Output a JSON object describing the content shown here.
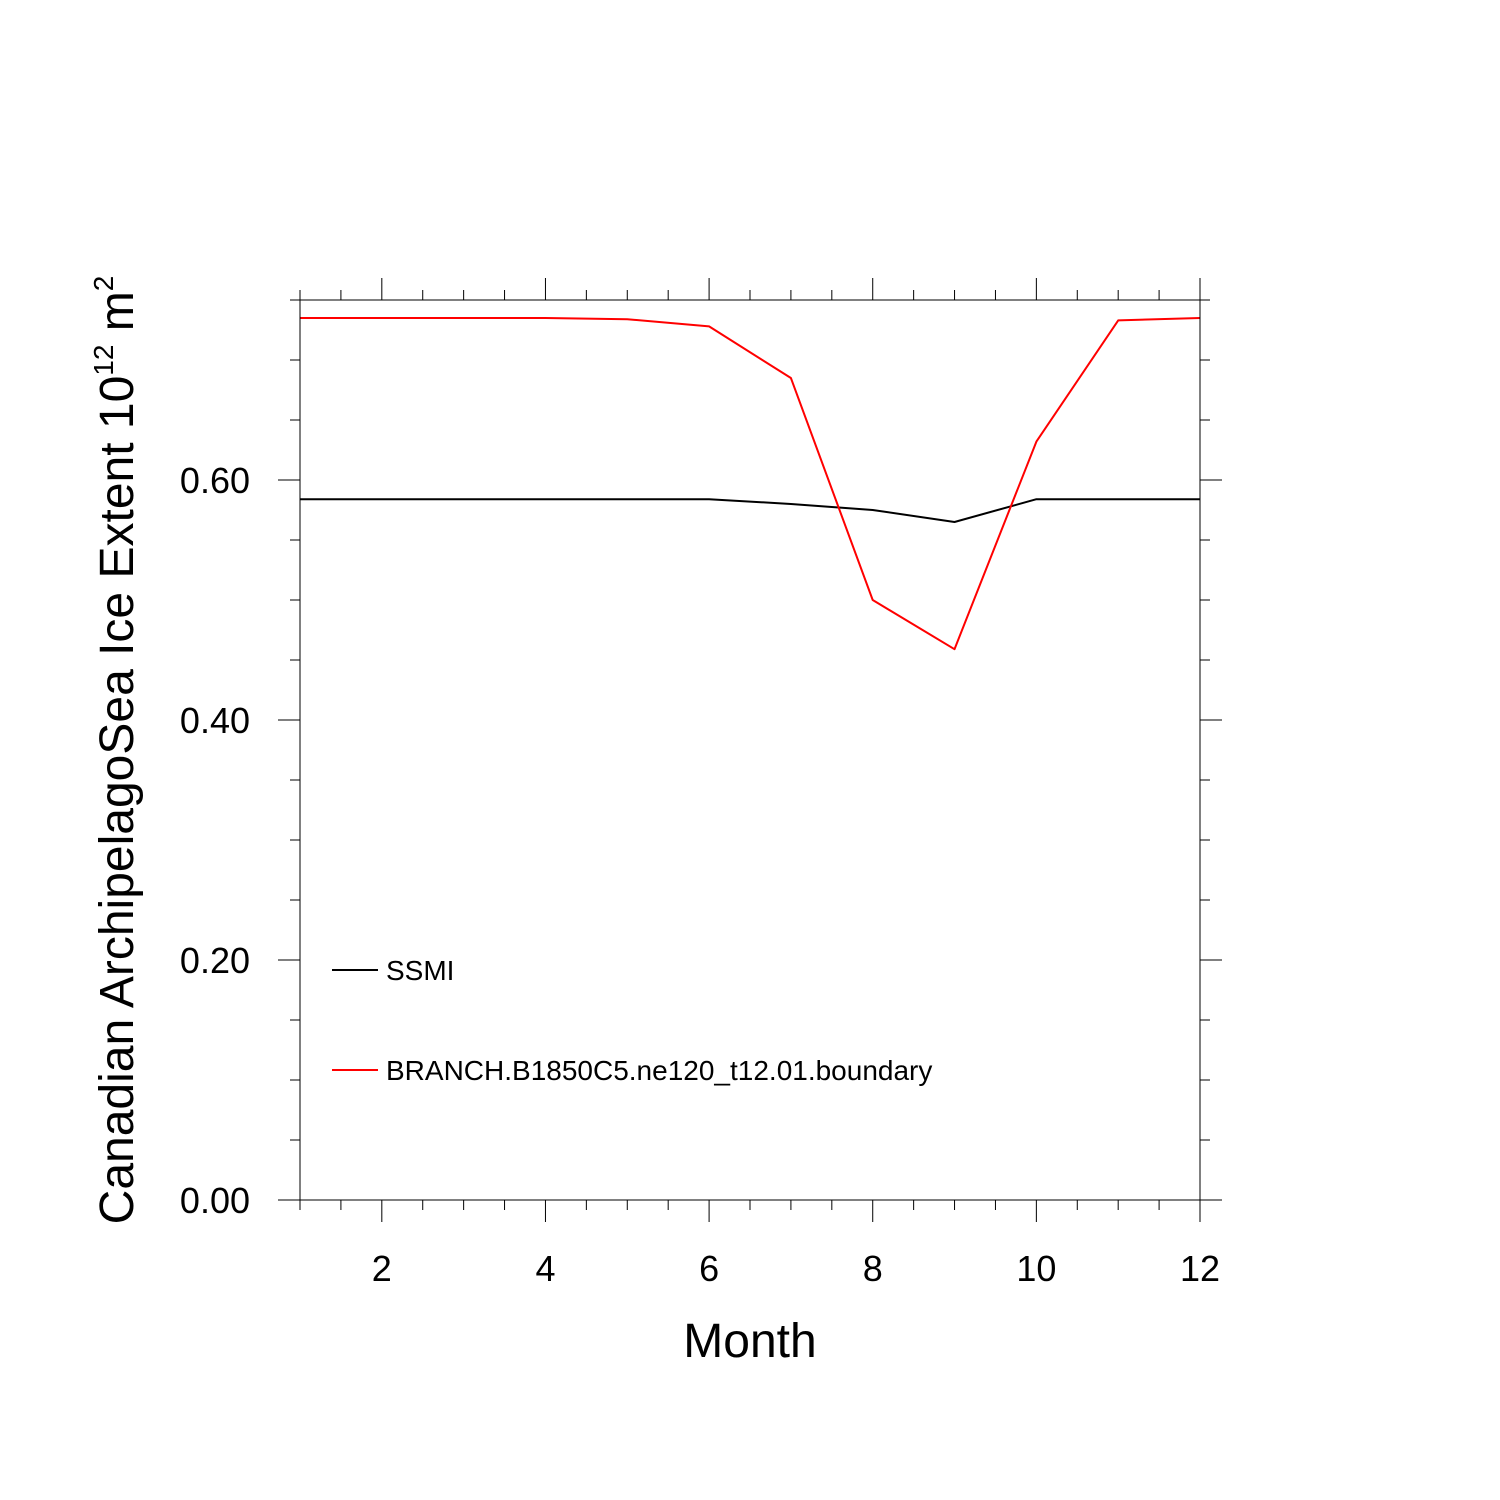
{
  "chart_data": {
    "type": "line",
    "title": "",
    "xlabel": "Month",
    "ylabel": {
      "prefix": "Canadian ArchipelagoSea Ice Extent 10",
      "sup1": "12",
      "mid": " m",
      "sup2": "2"
    },
    "xlim": [
      1,
      12
    ],
    "ylim": [
      0,
      0.75
    ],
    "x_ticks": [
      2,
      4,
      6,
      8,
      10,
      12
    ],
    "x_tick_labels": [
      "2",
      "4",
      "6",
      "8",
      "10",
      "12"
    ],
    "y_ticks": [
      0.0,
      0.2,
      0.4,
      0.6
    ],
    "y_tick_labels": [
      "0.00",
      "0.20",
      "0.40",
      "0.60"
    ],
    "grid": false,
    "legend_position": "lower-left",
    "x": [
      1,
      2,
      3,
      4,
      5,
      6,
      7,
      8,
      9,
      10,
      11,
      12
    ],
    "series": [
      {
        "name": "SSMI",
        "color": "#000000",
        "values": [
          0.584,
          0.584,
          0.584,
          0.584,
          0.584,
          0.584,
          0.58,
          0.575,
          0.565,
          0.584,
          0.584,
          0.584
        ]
      },
      {
        "name": "BRANCH.B1850C5.ne120_t12.01.boundary",
        "color": "#ff0000",
        "values": [
          0.735,
          0.735,
          0.735,
          0.735,
          0.734,
          0.728,
          0.685,
          0.5,
          0.459,
          0.632,
          0.733,
          0.735
        ]
      }
    ]
  }
}
